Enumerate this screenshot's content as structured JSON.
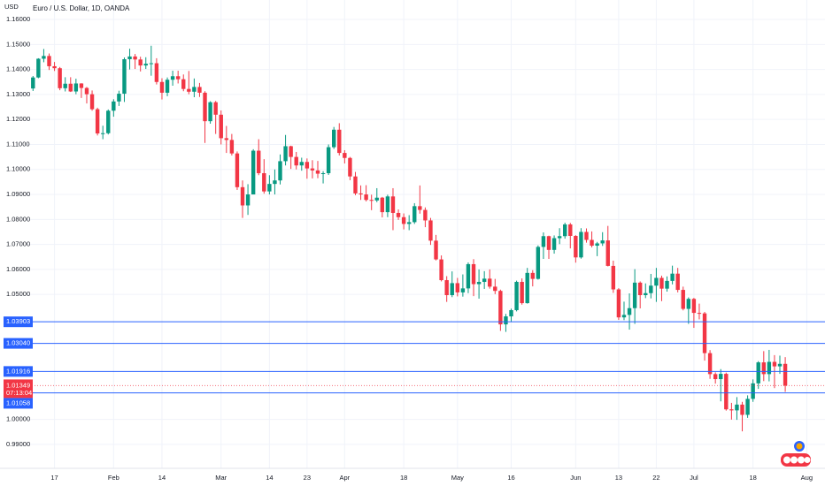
{
  "chart_data": {
    "type": "candlestick",
    "title": "Euro / U.S. Dollar, 1D, OANDA",
    "currency": "USD",
    "up_color": "#089981",
    "down_color": "#f23645",
    "grid": true,
    "ylim": [
      0.9804,
      1.1678
    ],
    "xlim": [
      -1.2,
      147.4
    ],
    "yticks": [
      {
        "value": 1.16,
        "label": "1.16000"
      },
      {
        "value": 1.15,
        "label": "1.15000"
      },
      {
        "value": 1.14,
        "label": "1.14000"
      },
      {
        "value": 1.13,
        "label": "1.13000"
      },
      {
        "value": 1.12,
        "label": "1.12000"
      },
      {
        "value": 1.11,
        "label": "1.11000"
      },
      {
        "value": 1.1,
        "label": "1.10000"
      },
      {
        "value": 1.09,
        "label": "1.09000"
      },
      {
        "value": 1.08,
        "label": "1.08000"
      },
      {
        "value": 1.07,
        "label": "1.07000"
      },
      {
        "value": 1.06,
        "label": "1.06000"
      },
      {
        "value": 1.05,
        "label": "1.05000"
      },
      {
        "value": 1,
        "label": "1.00000"
      },
      {
        "value": 0.99,
        "label": "0.99000"
      }
    ],
    "xticks": [
      {
        "value": 4,
        "label": "17"
      },
      {
        "value": 15,
        "label": "Feb"
      },
      {
        "value": 24,
        "label": "14"
      },
      {
        "value": 35,
        "label": "Mar"
      },
      {
        "value": 44,
        "label": "14"
      },
      {
        "value": 51,
        "label": "23"
      },
      {
        "value": 58,
        "label": "Apr"
      },
      {
        "value": 69,
        "label": "18"
      },
      {
        "value": 79,
        "label": "May"
      },
      {
        "value": 89,
        "label": "16"
      },
      {
        "value": 101,
        "label": "Jun"
      },
      {
        "value": 109,
        "label": "13"
      },
      {
        "value": 116,
        "label": "22"
      },
      {
        "value": 123,
        "label": "Jul"
      },
      {
        "value": 134,
        "label": "18"
      },
      {
        "value": 144,
        "label": "Aug"
      }
    ],
    "hlines": [
      {
        "value": 1.03903,
        "label": "1.03903",
        "color": "#2962ff"
      },
      {
        "value": 1.0304,
        "label": "1.03040",
        "color": "#2962ff"
      },
      {
        "value": 1.01916,
        "label": "1.01916",
        "color": "#2962ff"
      },
      {
        "value": 1.01058,
        "label": "1.01058",
        "color": "#2962ff"
      }
    ],
    "last_price": {
      "value": 1.01349,
      "label": "1.01349"
    },
    "countdown": "07:13:04",
    "candles": [
      [
        1.1324,
        1.1374,
        1.1314,
        1.1368
      ],
      [
        1.1368,
        1.1445,
        1.1365,
        1.1443
      ],
      [
        1.1443,
        1.1482,
        1.1429,
        1.1454
      ],
      [
        1.1454,
        1.1464,
        1.1398,
        1.1413
      ],
      [
        1.1413,
        1.143,
        1.1394,
        1.1405
      ],
      [
        1.1405,
        1.141,
        1.1317,
        1.1325
      ],
      [
        1.1325,
        1.1369,
        1.1312,
        1.1343
      ],
      [
        1.1343,
        1.1369,
        1.131,
        1.1312
      ],
      [
        1.1312,
        1.1363,
        1.1301,
        1.1344
      ],
      [
        1.1344,
        1.1345,
        1.1286,
        1.1326
      ],
      [
        1.1326,
        1.133,
        1.1264,
        1.1301
      ],
      [
        1.1301,
        1.1316,
        1.1235,
        1.1241
      ],
      [
        1.1241,
        1.1247,
        1.1136,
        1.1144
      ],
      [
        1.1144,
        1.1175,
        1.1121,
        1.1145
      ],
      [
        1.1145,
        1.124,
        1.114,
        1.1235
      ],
      [
        1.1235,
        1.1281,
        1.1211,
        1.1272
      ],
      [
        1.1272,
        1.1315,
        1.1254,
        1.1303
      ],
      [
        1.1303,
        1.1448,
        1.127,
        1.1441
      ],
      [
        1.1441,
        1.1483,
        1.14,
        1.1452
      ],
      [
        1.1452,
        1.1462,
        1.1402,
        1.144
      ],
      [
        1.144,
        1.1451,
        1.1392,
        1.1416
      ],
      [
        1.1416,
        1.1449,
        1.1402,
        1.1423
      ],
      [
        1.1423,
        1.1495,
        1.1375,
        1.1425
      ],
      [
        1.1425,
        1.1445,
        1.134,
        1.135
      ],
      [
        1.135,
        1.1365,
        1.128,
        1.1307
      ],
      [
        1.1307,
        1.1368,
        1.1293,
        1.1359
      ],
      [
        1.1359,
        1.1395,
        1.1335,
        1.1373
      ],
      [
        1.1373,
        1.1395,
        1.1344,
        1.1361
      ],
      [
        1.1361,
        1.138,
        1.1313,
        1.1322
      ],
      [
        1.1322,
        1.1394,
        1.1301,
        1.1311
      ],
      [
        1.1311,
        1.1364,
        1.1289,
        1.133
      ],
      [
        1.133,
        1.1346,
        1.129,
        1.1307
      ],
      [
        1.1307,
        1.1313,
        1.1106,
        1.1193
      ],
      [
        1.1193,
        1.1273,
        1.1183,
        1.1269
      ],
      [
        1.1269,
        1.1274,
        1.1142,
        1.1219
      ],
      [
        1.1219,
        1.1236,
        1.11,
        1.1125
      ],
      [
        1.1125,
        1.1174,
        1.1066,
        1.1118
      ],
      [
        1.1118,
        1.1142,
        1.1056,
        1.1064
      ],
      [
        1.1064,
        1.1072,
        1.0918,
        1.0929
      ],
      [
        1.0929,
        1.0956,
        1.0806,
        1.0856
      ],
      [
        1.0856,
        1.0941,
        1.0818,
        1.09
      ],
      [
        1.09,
        1.1081,
        1.09,
        1.1075
      ],
      [
        1.1075,
        1.1121,
        1.0977,
        1.0985
      ],
      [
        1.0985,
        1.1041,
        1.0903,
        1.0912
      ],
      [
        1.0912,
        1.0977,
        1.09,
        1.0942
      ],
      [
        1.0942,
        1.1,
        1.09,
        1.0956
      ],
      [
        1.0956,
        1.106,
        1.094,
        1.1033
      ],
      [
        1.1033,
        1.1138,
        1.1016,
        1.1093
      ],
      [
        1.1093,
        1.1095,
        1.1002,
        1.105
      ],
      [
        1.105,
        1.107,
        1.1,
        1.1016
      ],
      [
        1.1016,
        1.1047,
        1.0995,
        1.103
      ],
      [
        1.103,
        1.1044,
        1.0963,
        1.1004
      ],
      [
        1.1004,
        1.1037,
        1.0964,
        1.0996
      ],
      [
        1.0996,
        1.1034,
        1.0965,
        1.0983
      ],
      [
        1.0983,
        1.0993,
        1.0944,
        1.0985
      ],
      [
        1.0985,
        1.11,
        1.0978,
        1.1089
      ],
      [
        1.1089,
        1.117,
        1.1082,
        1.1159
      ],
      [
        1.1159,
        1.1185,
        1.1056,
        1.1066
      ],
      [
        1.1066,
        1.1077,
        1.1024,
        1.1046
      ],
      [
        1.1046,
        1.105,
        1.0957,
        1.0972
      ],
      [
        1.0972,
        1.099,
        1.0897,
        1.0904
      ],
      [
        1.0904,
        1.0936,
        1.0878,
        1.09
      ],
      [
        1.09,
        1.0937,
        1.0872,
        1.0878
      ],
      [
        1.0878,
        1.0899,
        1.0837,
        1.0876
      ],
      [
        1.0876,
        1.0925,
        1.0869,
        1.0887
      ],
      [
        1.0887,
        1.089,
        1.0808,
        1.0829
      ],
      [
        1.0829,
        1.0899,
        1.0809,
        1.0892
      ],
      [
        1.0892,
        1.0925,
        1.0757,
        1.0826
      ],
      [
        1.0826,
        1.084,
        1.0798,
        1.0809
      ],
      [
        1.0809,
        1.0824,
        1.076,
        1.0782
      ],
      [
        1.0782,
        1.0817,
        1.0757,
        1.0789
      ],
      [
        1.0789,
        1.0865,
        1.0782,
        1.0853
      ],
      [
        1.0853,
        1.0936,
        1.0823,
        1.0838
      ],
      [
        1.0838,
        1.0848,
        1.0769,
        1.0796
      ],
      [
        1.0796,
        1.0806,
        1.0698,
        1.0715
      ],
      [
        1.0715,
        1.0738,
        1.0636,
        1.064
      ],
      [
        1.064,
        1.0656,
        1.0552,
        1.0557
      ],
      [
        1.0557,
        1.0573,
        1.047,
        1.0497
      ],
      [
        1.0497,
        1.0592,
        1.0489,
        1.0545
      ],
      [
        1.0545,
        1.0566,
        1.0492,
        1.0508
      ],
      [
        1.0508,
        1.058,
        1.0491,
        1.0524
      ],
      [
        1.0524,
        1.0628,
        1.0505,
        1.0621
      ],
      [
        1.0621,
        1.0641,
        1.0493,
        1.0541
      ],
      [
        1.0541,
        1.06,
        1.0483,
        1.055
      ],
      [
        1.055,
        1.0593,
        1.0522,
        1.0563
      ],
      [
        1.0563,
        1.06,
        1.0523,
        1.0531
      ],
      [
        1.0531,
        1.0562,
        1.0501,
        1.0514
      ],
      [
        1.0514,
        1.0519,
        1.0354,
        1.038
      ],
      [
        1.038,
        1.0422,
        1.035,
        1.0412
      ],
      [
        1.0412,
        1.0443,
        1.0389,
        1.0437
      ],
      [
        1.0437,
        1.0555,
        1.0432,
        1.055
      ],
      [
        1.055,
        1.0564,
        1.0459,
        1.0465
      ],
      [
        1.0465,
        1.0606,
        1.0463,
        1.0586
      ],
      [
        1.0586,
        1.0597,
        1.0532,
        1.0562
      ],
      [
        1.0562,
        1.0696,
        1.0559,
        1.069
      ],
      [
        1.069,
        1.0748,
        1.0642,
        1.0733
      ],
      [
        1.0733,
        1.0735,
        1.0642,
        1.0678
      ],
      [
        1.0678,
        1.0736,
        1.0663,
        1.0725
      ],
      [
        1.0725,
        1.0765,
        1.0701,
        1.0733
      ],
      [
        1.0733,
        1.0787,
        1.0723,
        1.078
      ],
      [
        1.078,
        1.0786,
        1.0684,
        1.0734
      ],
      [
        1.0734,
        1.0737,
        1.0627,
        1.0648
      ],
      [
        1.0648,
        1.0765,
        1.0643,
        1.075
      ],
      [
        1.075,
        1.0764,
        1.0707,
        1.0718
      ],
      [
        1.0718,
        1.0752,
        1.0688,
        1.0695
      ],
      [
        1.0695,
        1.071,
        1.0653,
        1.0704
      ],
      [
        1.0704,
        1.0749,
        1.0694,
        1.0716
      ],
      [
        1.0716,
        1.0774,
        1.0612,
        1.0614
      ],
      [
        1.0614,
        1.0635,
        1.0506,
        1.052
      ],
      [
        1.052,
        1.0525,
        1.0398,
        1.0408
      ],
      [
        1.0408,
        1.0471,
        1.0397,
        1.0418
      ],
      [
        1.0418,
        1.0504,
        1.0359,
        1.0445
      ],
      [
        1.0445,
        1.0601,
        1.0382,
        1.0547
      ],
      [
        1.0547,
        1.0552,
        1.0444,
        1.0497
      ],
      [
        1.0497,
        1.0544,
        1.0485,
        1.0505
      ],
      [
        1.0505,
        1.0582,
        1.0484,
        1.0535
      ],
      [
        1.0535,
        1.0606,
        1.047,
        1.0566
      ],
      [
        1.0566,
        1.0575,
        1.0473,
        1.0523
      ],
      [
        1.0523,
        1.0572,
        1.0511,
        1.0554
      ],
      [
        1.0554,
        1.0615,
        1.054,
        1.0583
      ],
      [
        1.0583,
        1.0606,
        1.0508,
        1.0518
      ],
      [
        1.0518,
        1.0531,
        1.0436,
        1.0442
      ],
      [
        1.0442,
        1.0488,
        1.0382,
        1.0482
      ],
      [
        1.0482,
        1.0486,
        1.0366,
        1.0426
      ],
      [
        1.0426,
        1.0463,
        1.04,
        1.0424
      ],
      [
        1.0424,
        1.043,
        1.0235,
        1.0265
      ],
      [
        1.0265,
        1.0277,
        1.0162,
        1.0181
      ],
      [
        1.0181,
        1.0188,
        1.0143,
        1.0161
      ],
      [
        1.0161,
        1.0201,
        1.0072,
        1.0182
      ],
      [
        1.0182,
        1.0187,
        1.0035,
        1.004
      ],
      [
        1.004,
        1.0066,
        0.9999,
        1.0036
      ],
      [
        1.0036,
        1.0089,
        0.9998,
        1.0059
      ],
      [
        1.0059,
        1.007,
        0.9952,
        1.0018
      ],
      [
        1.0018,
        1.0096,
        1.0006,
        1.0082
      ],
      [
        1.0082,
        1.016,
        1.007,
        1.0144
      ],
      [
        1.0144,
        1.0233,
        1.0122,
        1.0228
      ],
      [
        1.0228,
        1.0273,
        1.0153,
        1.0181
      ],
      [
        1.0181,
        1.0278,
        1.0152,
        1.023
      ],
      [
        1.023,
        1.0257,
        1.0125,
        1.0212
      ],
      [
        1.0212,
        1.0255,
        1.0182,
        1.0222
      ],
      [
        1.0222,
        1.0249,
        1.011,
        1.01349
      ]
    ]
  }
}
